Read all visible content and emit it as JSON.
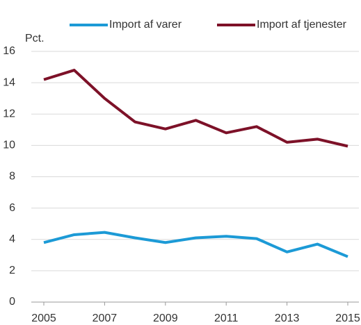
{
  "chart_data": {
    "type": "line",
    "y_unit_label": "Pct.",
    "x": [
      2005,
      2006,
      2007,
      2008,
      2009,
      2010,
      2011,
      2012,
      2013,
      2014,
      2015
    ],
    "xlim": [
      2005,
      2015
    ],
    "xticks": [
      2005,
      2007,
      2009,
      2011,
      2013,
      2015
    ],
    "ylim": [
      0,
      16
    ],
    "yticks": [
      0,
      2,
      4,
      6,
      8,
      10,
      12,
      14,
      16
    ],
    "grid": true,
    "legend": "top",
    "series": [
      {
        "name": "Import af varer",
        "color": "#1c9ad6",
        "values": [
          3.8,
          4.3,
          4.45,
          4.1,
          3.8,
          4.1,
          4.2,
          4.05,
          3.2,
          3.7,
          2.9
        ]
      },
      {
        "name": "Import af tjenester",
        "color": "#7d1128",
        "values": [
          14.2,
          14.8,
          13.0,
          11.5,
          11.05,
          11.6,
          10.8,
          11.2,
          10.2,
          10.4,
          9.95
        ]
      }
    ]
  }
}
